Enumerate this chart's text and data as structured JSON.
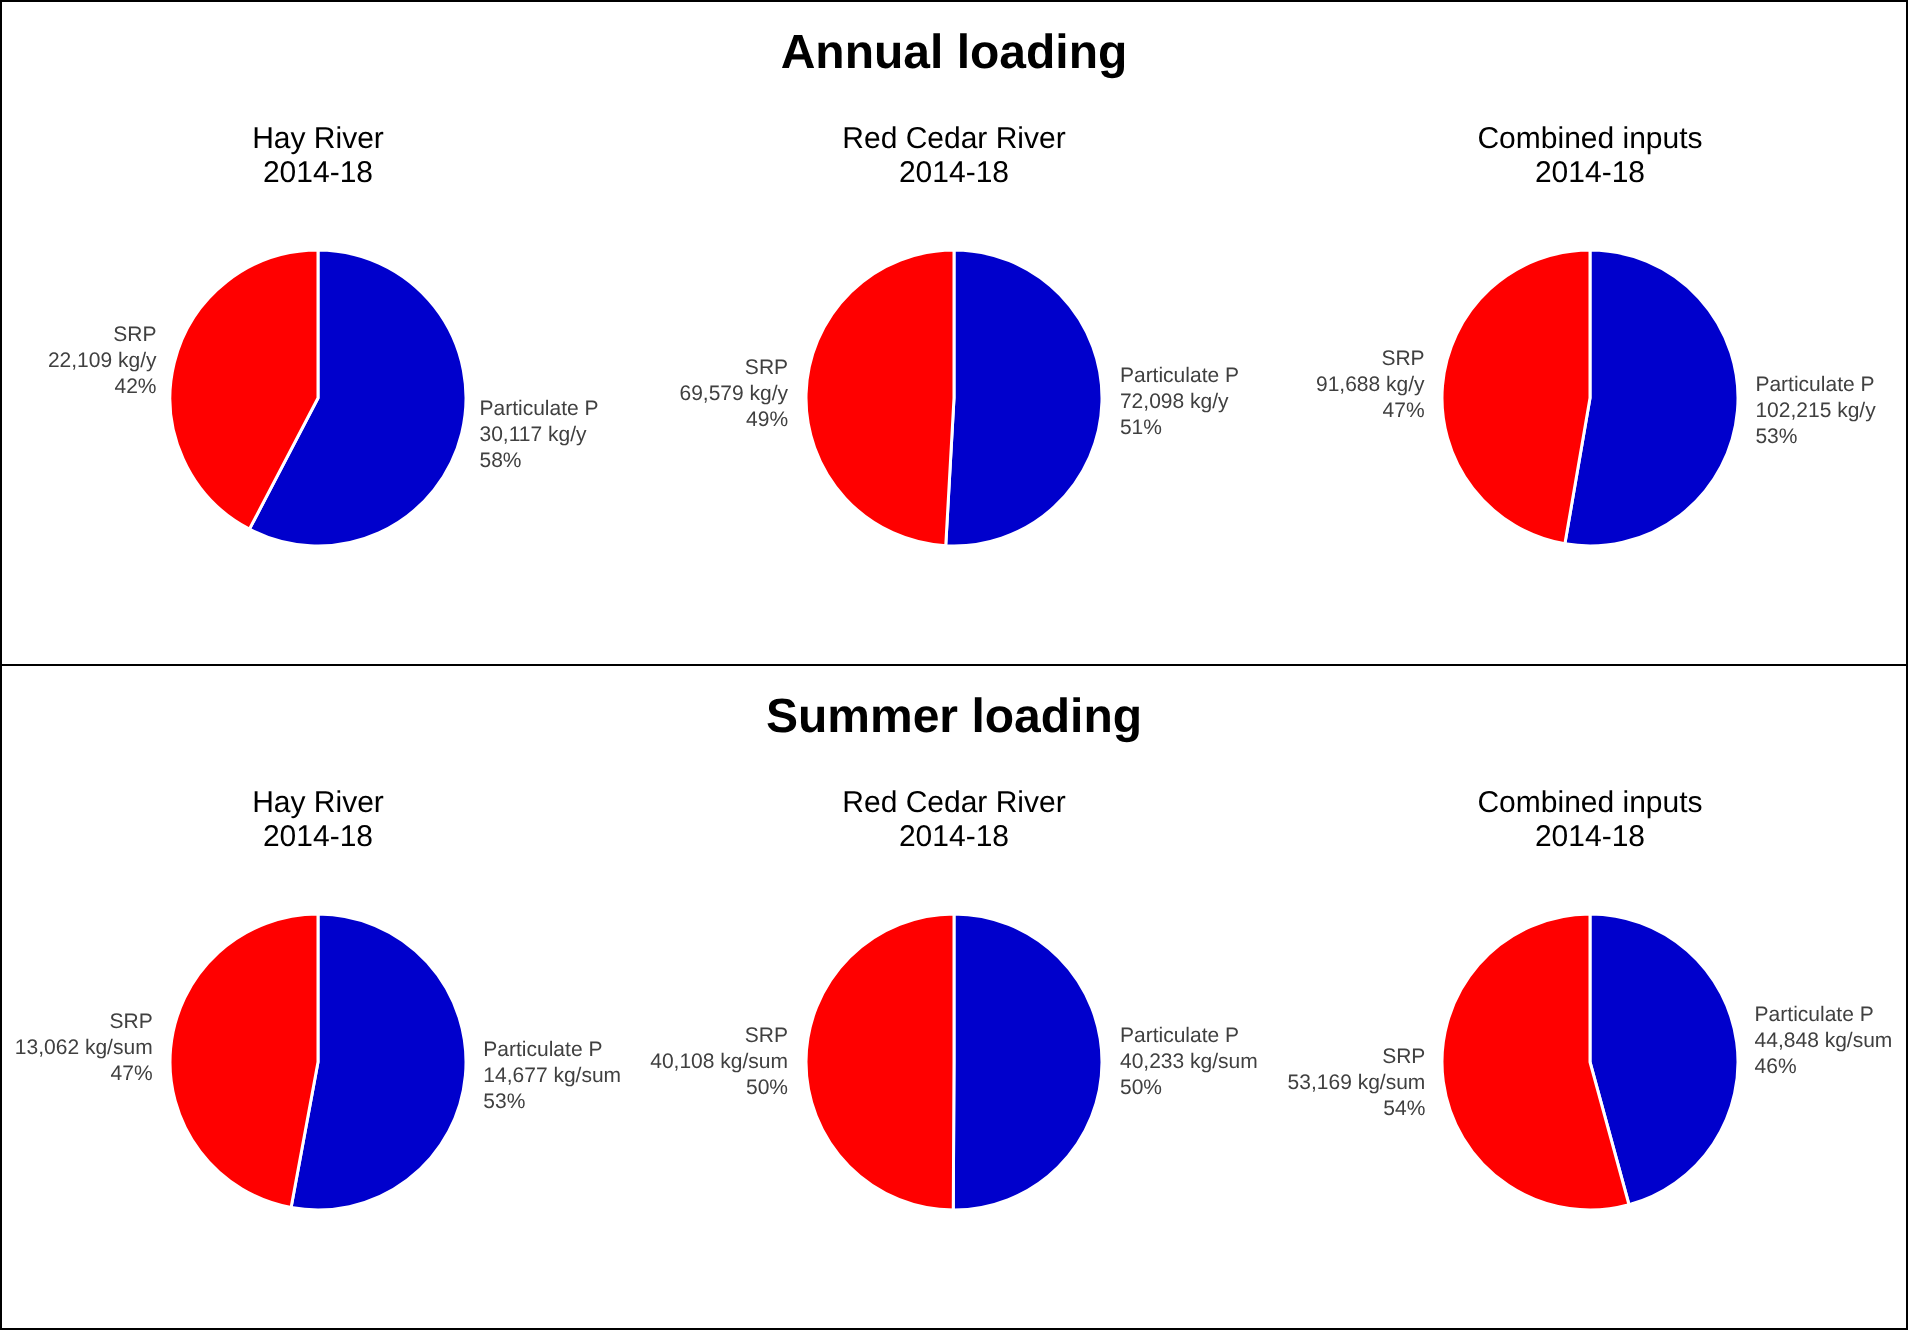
{
  "chart_data": [
    {
      "type": "pie",
      "annotations": [
        "Annual loading"
      ],
      "title": "Hay River",
      "subtitle": "2014-18",
      "categories": [
        "Particulate P",
        "SRP"
      ],
      "values": [
        30117,
        22109
      ],
      "colors": [
        "#0000cc",
        "#ff0000"
      ],
      "value_labels": [
        "30,117 kg/y\n58%",
        "22,109 kg/y\n42%"
      ],
      "legend": false
    },
    {
      "type": "pie",
      "title": "Red Cedar River",
      "subtitle": "2014-18",
      "categories": [
        "Particulate P",
        "SRP"
      ],
      "values": [
        72098,
        69579
      ],
      "colors": [
        "#0000cc",
        "#ff0000"
      ],
      "value_labels": [
        "72,098 kg/y\n51%",
        "69,579 kg/y\n49%"
      ],
      "legend": false
    },
    {
      "type": "pie",
      "title": "Combined inputs",
      "subtitle": "2014-18",
      "categories": [
        "Particulate P",
        "SRP"
      ],
      "values": [
        102215,
        91688
      ],
      "colors": [
        "#0000cc",
        "#ff0000"
      ],
      "value_labels": [
        "102,215 kg/y\n53%",
        "91,688 kg/y\n47%"
      ],
      "legend": false
    },
    {
      "type": "pie",
      "annotations": [
        "Summer loading"
      ],
      "title": "Hay River",
      "subtitle": "2014-18",
      "categories": [
        "Particulate P",
        "SRP"
      ],
      "values": [
        14677,
        13062
      ],
      "colors": [
        "#0000cc",
        "#ff0000"
      ],
      "value_labels": [
        "14,677 kg/sum\n53%",
        "13,062 kg/sum\n47%"
      ],
      "legend": false
    },
    {
      "type": "pie",
      "title": "Red Cedar River",
      "subtitle": "2014-18",
      "categories": [
        "Particulate P",
        "SRP"
      ],
      "values": [
        40233,
        40108
      ],
      "colors": [
        "#0000cc",
        "#ff0000"
      ],
      "value_labels": [
        "40,233 kg/sum\n50%",
        "40,108 kg/sum\n50%"
      ],
      "legend": false
    },
    {
      "type": "pie",
      "title": "Combined inputs",
      "subtitle": "2014-18",
      "categories": [
        "Particulate P",
        "SRP"
      ],
      "values": [
        44848,
        53169
      ],
      "colors": [
        "#0000cc",
        "#ff0000"
      ],
      "value_labels": [
        "44,848 kg/sum\n46%",
        "53,169 kg/sum\n54%"
      ],
      "legend": false
    }
  ]
}
